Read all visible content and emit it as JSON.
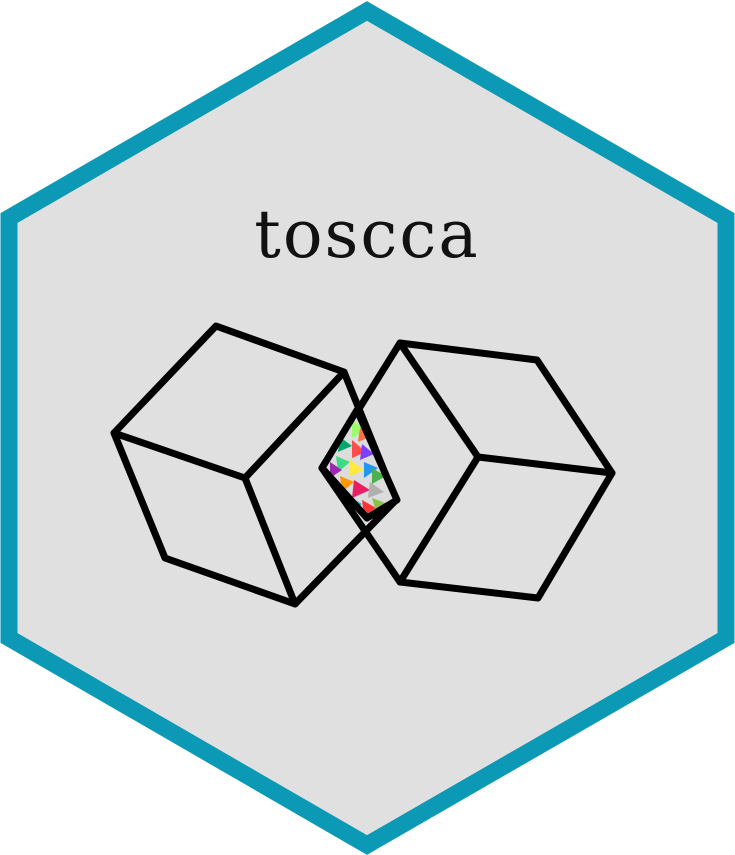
{
  "logo": {
    "title": "toscca",
    "colors": {
      "border": "#0b99b5",
      "background": "#e0e0e0",
      "cube_stroke": "#000000"
    },
    "icons": {
      "left_cube": "cube-icon",
      "right_cube": "cube-icon",
      "intersection": "colorful-triangles-icon"
    }
  }
}
